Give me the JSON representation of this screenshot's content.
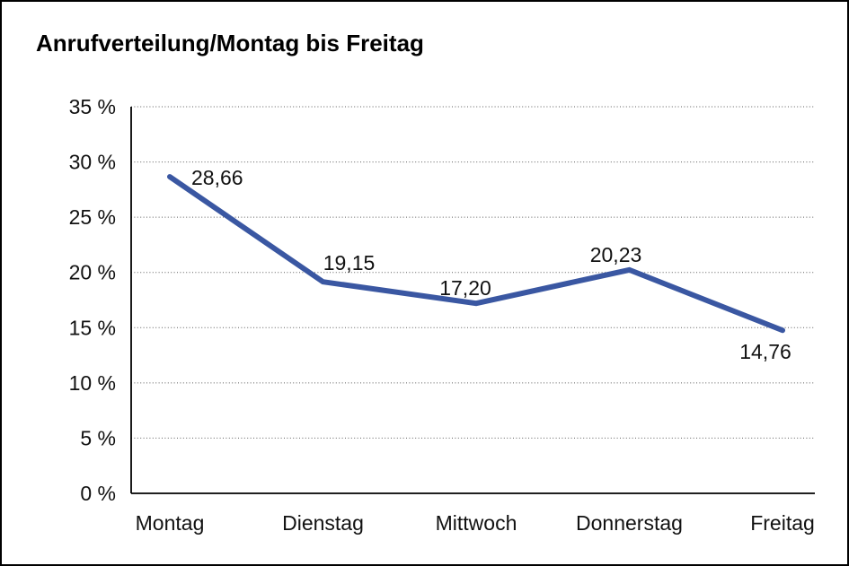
{
  "chart_data": {
    "type": "line",
    "title": "Anrufverteilung/Montag bis Freitag",
    "categories": [
      "Montag",
      "Dienstag",
      "Mittwoch",
      "Donnerstag",
      "Freitag"
    ],
    "series": [
      {
        "values": [
          28.66,
          19.15,
          17.2,
          20.23,
          14.76
        ],
        "labels": [
          "28,66",
          "19,15",
          "17,20",
          "20,23",
          "14,76"
        ]
      }
    ],
    "ylim": [
      0,
      35
    ],
    "ytick_step": 5,
    "ytick_labels": [
      "0 %",
      "5 %",
      "10 %",
      "15 %",
      "20 %",
      "25 %",
      "30 %",
      "35 %"
    ],
    "xlabel": "",
    "ylabel": "",
    "grid": "horizontal-dotted",
    "legend": "none",
    "line_color": "#3A57A2",
    "axis_color": "#000000",
    "grid_color": "#5e5e5e",
    "text_color": "#111111",
    "background": "#FFFFFF"
  }
}
